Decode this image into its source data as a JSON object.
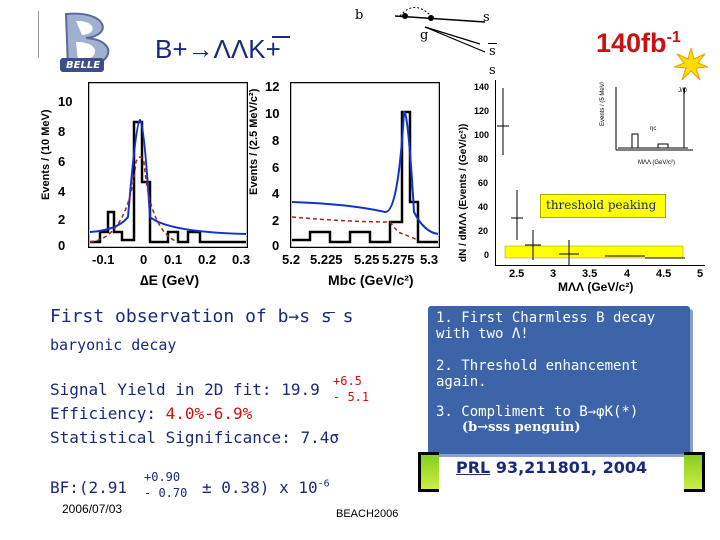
{
  "header": {
    "logo_text": "BELLE",
    "title": "B+→ΛΛK+",
    "quark_labels": {
      "b": "b",
      "g": "g",
      "s1": "s",
      "s2": "s",
      "s3": "s"
    },
    "lumi": "140fb",
    "lumi_sup": "-1"
  },
  "plots": {
    "de": {
      "ylabel": "Events / (10 MeV)",
      "y_ticks": [
        "10",
        "8",
        "6",
        "4",
        "2",
        "0"
      ],
      "x_ticks": [
        "-0.1",
        "0",
        "0.1",
        "0.2",
        "0.3"
      ],
      "xlabel": "∆E (GeV)"
    },
    "mbc": {
      "ylabel": "Events / (2.5 MeV/c²)",
      "y_ticks": [
        "12",
        "10",
        "8",
        "6",
        "4",
        "2",
        "0"
      ],
      "x_ticks": [
        "5.2",
        "5.225",
        "5.25",
        "5.275",
        "5.3"
      ],
      "xlabel": "Mbc (GeV/c²)"
    },
    "mass": {
      "ylabel": "dN / dMΛΛ (Events / (GeV/c²))",
      "y_ticks": [
        "140",
        "120",
        "100",
        "80",
        "60",
        "40",
        "20",
        "0"
      ],
      "x_ticks": [
        "2.5",
        "3",
        "3.5",
        "4",
        "4.5",
        "5"
      ],
      "xlabel": "MΛΛ (GeV/c²)",
      "annotation": "threshold peaking"
    }
  },
  "left_text": {
    "first_obs": "First observation of b→s s s",
    "baryonic": "baryonic decay",
    "yield_label": "Signal Yield in 2D fit:  19.9",
    "yield_up": "+6.5",
    "yield_down": "- 5.1",
    "efficiency_label": "Efficiency:",
    "efficiency_value": "4.0%-6.9%",
    "significance": "Statistical Significance: 7.4σ",
    "bf_prefix": "BF:(2.91",
    "bf_up": "+0.90",
    "bf_down": "- 0.70",
    "bf_suffix": "± 0.38) x 10",
    "bf_exp": "-6"
  },
  "highlights": [
    {
      "num": "1.",
      "text": "First Charmless B decay with two Λ!"
    },
    {
      "num": "2.",
      "text": "Threshold enhancement again."
    },
    {
      "num": "3.",
      "text": "Compliment to B→φK(*)",
      "sub": "(b→sss penguin)"
    }
  ],
  "reference": {
    "journal": "PRL",
    "citation": "93,211801, 2004"
  },
  "footer": {
    "date": "2006/07/03",
    "conference": "BEACH2006"
  },
  "colors": {
    "navy": "#1a2a7a",
    "red": "#cc1111",
    "box": "#3d63a8",
    "yellow": "#ffff00",
    "fit_blue": "#1133cc"
  }
}
